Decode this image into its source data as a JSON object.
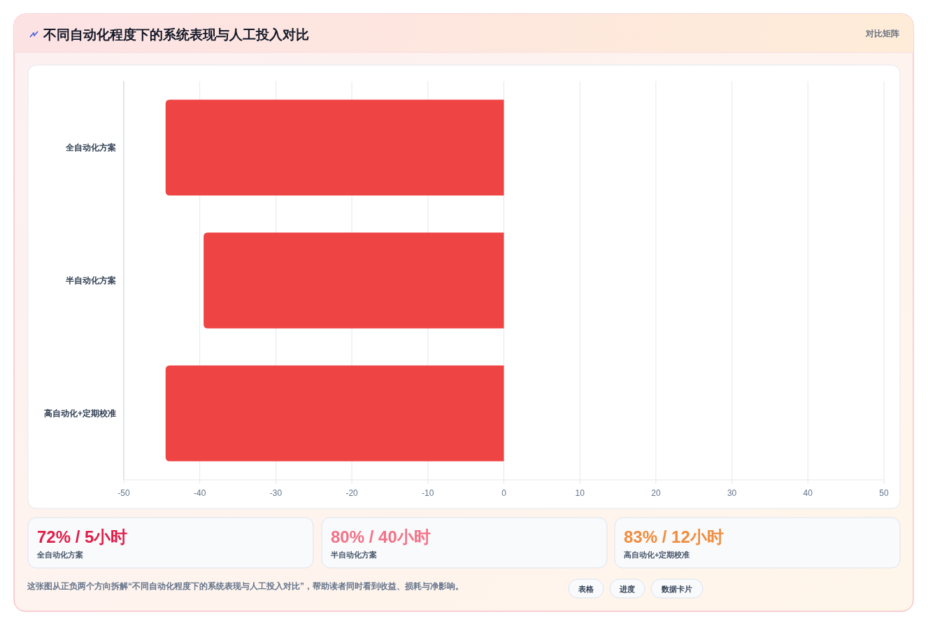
{
  "chart_data": [
    {
      "type": "bar",
      "orientation": "horizontal",
      "title": "不同自动化程度下的系统表现与人工投入对比",
      "annotations": [
        "对比矩阵"
      ],
      "categories": [
        "全自动化方案",
        "半自动化方案",
        "高自动化+定期校准"
      ],
      "series": [
        {
          "color": "#ef4444",
          "values": [
            -44.5,
            -39.5,
            -44.5
          ]
        }
      ],
      "xlim": [
        -50,
        50
      ],
      "xticks": [
        -50,
        -40,
        -30,
        -20,
        -10,
        0,
        10,
        20,
        30,
        40,
        50
      ],
      "grid": "x"
    },
    {
      "type": "other",
      "annotations": [
        "72% / 5小时",
        "全自动化方案",
        "80% / 40小时",
        "半自动化方案",
        "83% / 12小时",
        "高自动化+定期校准",
        "这张图从正负两个方向拆解“不同自动化程度下的系统表现与人工投入对比”，帮助读者同时看到收益、损耗与净影响。",
        "表格",
        "进度",
        "数据卡片"
      ]
    }
  ]
}
